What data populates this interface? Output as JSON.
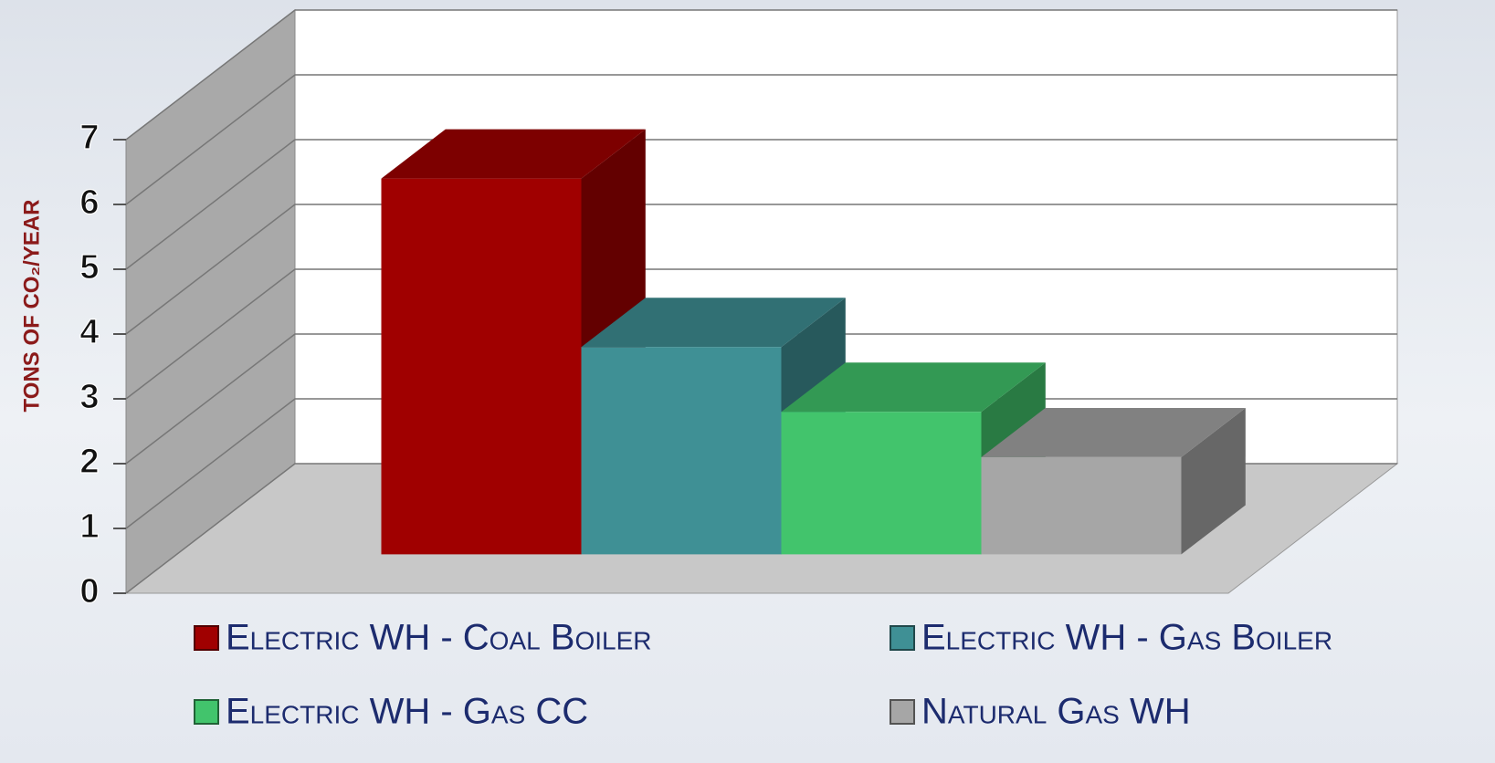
{
  "chart_data": {
    "type": "bar3d",
    "y_label": "TONS OF CO₂/YEAR",
    "categories": [
      null
    ],
    "series": [
      {
        "name": "Electric WH - Coal Boiler",
        "color": "#a00000",
        "values": [
          5.8
        ]
      },
      {
        "name": "Electric WH - Gas Boiler",
        "color": "#3f9095",
        "values": [
          3.2
        ]
      },
      {
        "name": "Electric WH - Gas CC",
        "color": "#42c46c",
        "values": [
          2.2
        ]
      },
      {
        "name": "Natural Gas WH",
        "color": "#a6a6a6",
        "values": [
          1.5
        ]
      }
    ],
    "ylim": [
      0,
      7
    ],
    "yticks": [
      0,
      1,
      2,
      3,
      4,
      5,
      6,
      7
    ],
    "grid": true,
    "legend": "bottom"
  }
}
